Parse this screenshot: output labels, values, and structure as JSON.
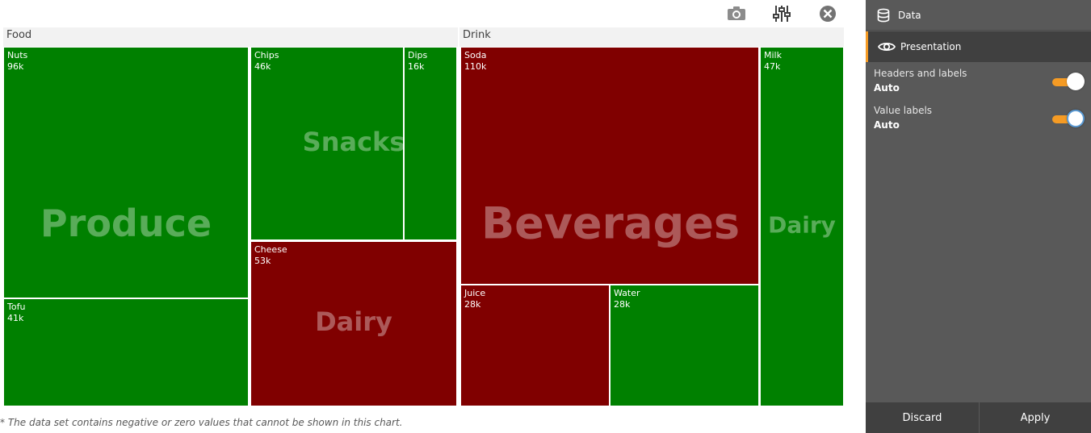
{
  "toolbar": {
    "camera_icon": "camera-icon",
    "settings_icon": "sliders-icon",
    "close_icon": "close-icon"
  },
  "colors": {
    "green": "#008000",
    "red": "#800000",
    "accent": "#f59b24"
  },
  "chart_data": {
    "type": "treemap",
    "groups": [
      {
        "name": "Food",
        "categories": [
          {
            "name": "Produce",
            "items": [
              {
                "name": "Nuts",
                "label": "96k",
                "value": 96000,
                "color": "green"
              },
              {
                "name": "Tofu",
                "label": "41k",
                "value": 41000,
                "color": "green"
              }
            ]
          },
          {
            "name": "Snacks",
            "items": [
              {
                "name": "Chips",
                "label": "46k",
                "value": 46000,
                "color": "green"
              },
              {
                "name": "Dips",
                "label": "16k",
                "value": 16000,
                "color": "green"
              }
            ]
          },
          {
            "name": "Dairy",
            "items": [
              {
                "name": "Cheese",
                "label": "53k",
                "value": 53000,
                "color": "red"
              }
            ]
          }
        ]
      },
      {
        "name": "Drink",
        "categories": [
          {
            "name": "Beverages",
            "items": [
              {
                "name": "Soda",
                "label": "110k",
                "value": 110000,
                "color": "red"
              },
              {
                "name": "Juice",
                "label": "28k",
                "value": 28000,
                "color": "red"
              },
              {
                "name": "Water",
                "label": "28k",
                "value": 28000,
                "color": "green"
              }
            ]
          },
          {
            "name": "Dairy",
            "items": [
              {
                "name": "Milk",
                "label": "47k",
                "value": 47000,
                "color": "green"
              }
            ]
          }
        ]
      }
    ]
  },
  "footnote": "* The data set contains negative or zero values that cannot be shown in this chart.",
  "panel": {
    "data_tab": {
      "icon": "database-icon",
      "label": "Data"
    },
    "presentation_tab": {
      "icon": "eye-icon",
      "label": "Presentation"
    },
    "options": [
      {
        "label": "Headers and labels",
        "value": "Auto",
        "enabled": true
      },
      {
        "label": "Value labels",
        "value": "Auto",
        "enabled": true
      }
    ],
    "discard": "Discard",
    "apply": "Apply"
  }
}
